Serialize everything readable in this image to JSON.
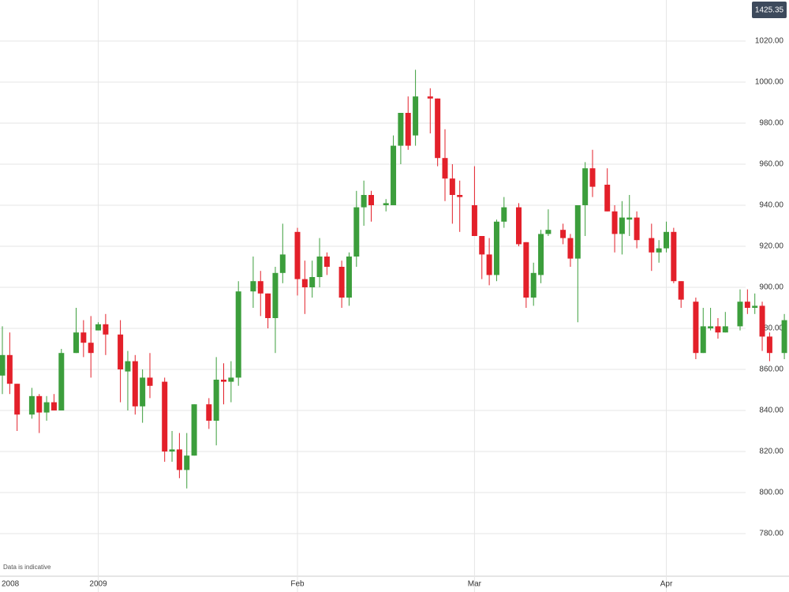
{
  "chart_data": {
    "type": "candlestick",
    "price_badge": "1425.35",
    "note": "Data is indicative",
    "categories": [
      "2008",
      null,
      null,
      null,
      null,
      null,
      null,
      null,
      null,
      null,
      null,
      null,
      null,
      "2009",
      null,
      null,
      null,
      null,
      null,
      null,
      null,
      null,
      null,
      null,
      null,
      null,
      null,
      null,
      null,
      null,
      null,
      null,
      null,
      null,
      null,
      null,
      null,
      null,
      null,
      null,
      "Feb",
      null,
      null,
      null,
      null,
      null,
      null,
      null,
      null,
      null,
      null,
      null,
      null,
      null,
      null,
      null,
      null,
      null,
      null,
      null,
      null,
      null,
      null,
      null,
      "Mar",
      null,
      null,
      null,
      null,
      null,
      null,
      null,
      null,
      null,
      null,
      null,
      null,
      null,
      null,
      null,
      null,
      null,
      null,
      null,
      null,
      null,
      null,
      null,
      null,
      null,
      "Apr",
      null,
      null,
      null,
      null,
      null,
      null,
      null,
      null,
      null,
      null,
      null,
      null,
      null,
      null,
      null,
      null
    ],
    "open": [
      857,
      867,
      853,
      null,
      838,
      847,
      839,
      844,
      840,
      null,
      868,
      878,
      873,
      879,
      882,
      null,
      877,
      859,
      864,
      842,
      856,
      null,
      854,
      820,
      821,
      811,
      818,
      null,
      843,
      835,
      855,
      854,
      856,
      null,
      898,
      903,
      897,
      885,
      907,
      null,
      927,
      904,
      900,
      905,
      915,
      null,
      910,
      895,
      915,
      939,
      945,
      null,
      940,
      940,
      969,
      985,
      974,
      null,
      993,
      992,
      963,
      953,
      945,
      null,
      940,
      925,
      916,
      906,
      932,
      null,
      939,
      922,
      895,
      906,
      926,
      null,
      928,
      924,
      914,
      940,
      958,
      null,
      950,
      937,
      926,
      933,
      934,
      null,
      924,
      917,
      919,
      927,
      903,
      null,
      893,
      868,
      880,
      881,
      878,
      null,
      881,
      893,
      890,
      891,
      876,
      null,
      868
    ],
    "high": [
      881,
      878,
      853,
      null,
      851,
      848,
      847,
      848,
      870,
      null,
      890,
      884,
      886,
      883,
      887,
      null,
      884,
      869,
      867,
      860,
      868,
      null,
      856,
      830,
      829,
      829,
      843,
      null,
      846,
      866,
      863,
      864,
      903,
      null,
      915,
      908,
      897,
      910,
      931,
      null,
      929,
      913,
      913,
      924,
      917,
      null,
      913,
      917,
      947,
      952,
      947,
      null,
      943,
      974,
      985,
      993,
      1006,
      null,
      997,
      992,
      977,
      960,
      952,
      null,
      959,
      925,
      924,
      933,
      944,
      null,
      941,
      922,
      912,
      928,
      938,
      null,
      931,
      926,
      940,
      961,
      967,
      null,
      958,
      940,
      942,
      945,
      937,
      null,
      931,
      923,
      932,
      929,
      903,
      null,
      895,
      890,
      890,
      885,
      888,
      null,
      899,
      899,
      897,
      893,
      878,
      null,
      887
    ],
    "low": [
      848,
      848,
      830,
      null,
      836,
      829,
      835,
      840,
      840,
      null,
      868,
      866,
      856,
      879,
      867,
      null,
      844,
      840,
      838,
      834,
      846,
      null,
      815,
      815,
      807,
      802,
      818,
      null,
      831,
      823,
      843,
      844,
      852,
      null,
      890,
      886,
      880,
      868,
      902,
      null,
      896,
      887,
      895,
      900,
      906,
      null,
      890,
      891,
      910,
      930,
      932,
      null,
      937,
      940,
      960,
      967,
      969,
      null,
      975,
      959,
      942,
      931,
      927,
      null,
      925,
      904,
      901,
      903,
      929,
      null,
      920,
      890,
      891,
      902,
      925,
      null,
      921,
      910,
      883,
      925,
      944,
      null,
      937,
      917,
      916,
      925,
      919,
      null,
      908,
      912,
      917,
      902,
      890,
      null,
      865,
      868,
      879,
      875,
      878,
      null,
      879,
      887,
      887,
      869,
      864,
      null,
      865
    ],
    "close": [
      867,
      853,
      838,
      null,
      847,
      839,
      844,
      840,
      868,
      null,
      878,
      873,
      868,
      882,
      877,
      null,
      860,
      864,
      842,
      856,
      852,
      null,
      820,
      821,
      811,
      818,
      843,
      null,
      835,
      855,
      854,
      856,
      898,
      null,
      903,
      897,
      885,
      907,
      916,
      null,
      904,
      900,
      905,
      915,
      910,
      null,
      895,
      915,
      939,
      945,
      940,
      null,
      941,
      969,
      985,
      969,
      993,
      null,
      992,
      963,
      953,
      945,
      944,
      null,
      925,
      916,
      906,
      932,
      939,
      null,
      921,
      895,
      907,
      926,
      928,
      null,
      924,
      914,
      940,
      958,
      949,
      null,
      937,
      926,
      934,
      934,
      923,
      null,
      917,
      919,
      927,
      903,
      894,
      null,
      868,
      881,
      881,
      878,
      881,
      null,
      893,
      890,
      891,
      876,
      868,
      null,
      884
    ],
    "up_color": "#3c9e3c",
    "down_color": "#e3202a",
    "ylim": [
      760,
      1040
    ],
    "yticks": [
      {
        "value": 780,
        "label": "780.00"
      },
      {
        "value": 800,
        "label": "800.00"
      },
      {
        "value": 820,
        "label": "820.00"
      },
      {
        "value": 840,
        "label": "840.00"
      },
      {
        "value": 860,
        "label": "860.00"
      },
      {
        "value": 880,
        "label": "880.00"
      },
      {
        "value": 900,
        "label": "900.00"
      },
      {
        "value": 920,
        "label": "920.00"
      },
      {
        "value": 940,
        "label": "940.00"
      },
      {
        "value": 960,
        "label": "960.00"
      },
      {
        "value": 980,
        "label": "980.00"
      },
      {
        "value": 1000,
        "label": "1000.00"
      },
      {
        "value": 1020,
        "label": "1020.00"
      }
    ],
    "grid": true
  }
}
